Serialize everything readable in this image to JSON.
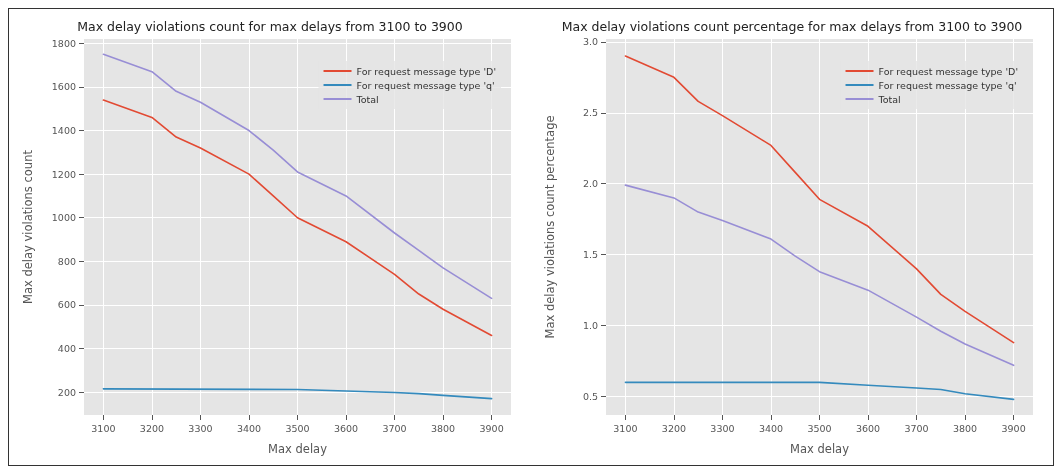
{
  "chart_data": [
    {
      "type": "line",
      "title": "Max delay violations count for max delays from 3100 to 3900",
      "xlabel": "Max delay",
      "ylabel": "Max delay violations count",
      "xlim": [
        3060,
        3940
      ],
      "xticks": [
        3100,
        3200,
        3300,
        3400,
        3500,
        3600,
        3700,
        3800,
        3900
      ],
      "ylim": [
        95,
        1820
      ],
      "yticks": [
        200,
        400,
        600,
        800,
        1000,
        1200,
        1400,
        1600,
        1800
      ],
      "grid": true,
      "legend": "top right",
      "line_style": "solid",
      "series": [
        {
          "name": "For request message type 'D'",
          "color": "#e24a33",
          "x": [
            3100,
            3200,
            3250,
            3300,
            3400,
            3450,
            3500,
            3600,
            3700,
            3750,
            3800,
            3900
          ],
          "values": [
            1540,
            1460,
            1370,
            1320,
            1200,
            1100,
            1000,
            890,
            740,
            650,
            580,
            460
          ]
        },
        {
          "name": "For request message type 'q'",
          "color": "#348abd",
          "x": [
            3100,
            3500,
            3600,
            3700,
            3750,
            3800,
            3900
          ],
          "values": [
            215,
            212,
            205,
            198,
            193,
            185,
            170
          ]
        },
        {
          "name": "Total",
          "color": "#988ed5",
          "x": [
            3100,
            3200,
            3250,
            3300,
            3400,
            3450,
            3500,
            3600,
            3700,
            3750,
            3800,
            3900
          ],
          "values": [
            1750,
            1670,
            1580,
            1530,
            1400,
            1310,
            1210,
            1100,
            930,
            850,
            770,
            630
          ]
        }
      ]
    },
    {
      "type": "line",
      "title": "Max delay violations count percentage for max delays from 3100 to 3900",
      "xlabel": "Max delay",
      "ylabel": "Max delay violations count percentage",
      "xlim": [
        3060,
        3940
      ],
      "xticks": [
        3100,
        3200,
        3300,
        3400,
        3500,
        3600,
        3700,
        3800,
        3900
      ],
      "ylim": [
        0.37,
        3.02
      ],
      "yticks": [
        {
          "value": 0.5,
          "label": "0.5"
        },
        {
          "value": 1,
          "label": "1.0"
        },
        {
          "value": 1.5,
          "label": "1.5"
        },
        {
          "value": 2,
          "label": "2.0"
        },
        {
          "value": 2.5,
          "label": "2.5"
        },
        {
          "value": 3,
          "label": "3.0"
        }
      ],
      "grid": true,
      "legend": "top right",
      "line_style": "solid",
      "series": [
        {
          "name": "For request message type 'D'",
          "color": "#e24a33",
          "x": [
            3100,
            3200,
            3250,
            3300,
            3400,
            3450,
            3500,
            3600,
            3700,
            3750,
            3800,
            3900
          ],
          "values": [
            2.9,
            2.75,
            2.58,
            2.48,
            2.27,
            2.08,
            1.89,
            1.7,
            1.4,
            1.22,
            1.1,
            0.88
          ]
        },
        {
          "name": "For request message type 'q'",
          "color": "#348abd",
          "x": [
            3100,
            3500,
            3600,
            3700,
            3750,
            3800,
            3900
          ],
          "values": [
            0.6,
            0.6,
            0.58,
            0.56,
            0.55,
            0.52,
            0.48
          ]
        },
        {
          "name": "Total",
          "color": "#988ed5",
          "x": [
            3100,
            3200,
            3250,
            3300,
            3400,
            3450,
            3500,
            3600,
            3700,
            3750,
            3800,
            3900
          ],
          "values": [
            1.99,
            1.9,
            1.8,
            1.74,
            1.61,
            1.49,
            1.38,
            1.25,
            1.06,
            0.96,
            0.87,
            0.72
          ]
        }
      ]
    }
  ]
}
